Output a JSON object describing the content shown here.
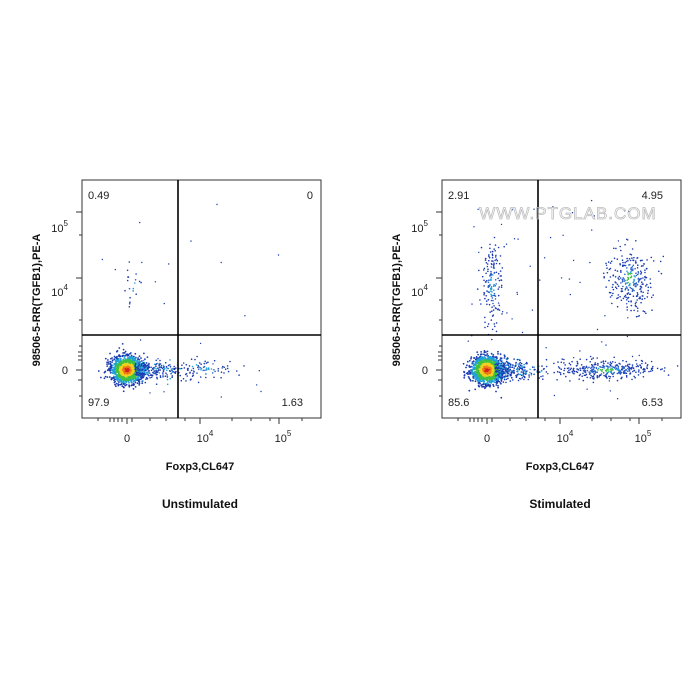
{
  "watermark": "WWW.PTGLAB.COM",
  "chart_data": [
    {
      "type": "scatter",
      "title": "Unstimulated",
      "xlabel": "Foxp3,CL647",
      "ylabel": "98506-5-RR(TGFB1),PE-A",
      "x_scale": "biexponential",
      "y_scale": "biexponential",
      "x_ticks": [
        "0",
        "10^4",
        "10^5"
      ],
      "y_ticks": [
        "0",
        "10^4",
        "10^5"
      ],
      "quadrants": {
        "upper_left": "0.49",
        "upper_right": "0",
        "lower_left": "97.9",
        "lower_right": "1.63"
      },
      "populations": [
        {
          "name": "Foxp3- TGFB1-",
          "x_center": 0,
          "y_center": 0,
          "percent": 97.9
        },
        {
          "name": "Foxp3- TGFB1+",
          "x_center": 300,
          "y_center": 8000,
          "percent": 0.49
        },
        {
          "name": "Foxp3+ TGFB1-",
          "x_center": 6000,
          "y_center": 0,
          "percent": 1.63
        }
      ],
      "grid": false
    },
    {
      "type": "scatter",
      "title": "Stimulated",
      "xlabel": "Foxp3,CL647",
      "ylabel": "98506-5-RR(TGFB1),PE-A",
      "x_scale": "biexponential",
      "y_scale": "biexponential",
      "x_ticks": [
        "0",
        "10^4",
        "10^5"
      ],
      "y_ticks": [
        "0",
        "10^4",
        "10^5"
      ],
      "quadrants": {
        "upper_left": "2.91",
        "upper_right": "4.95",
        "lower_left": "85.6",
        "lower_right": "6.53"
      },
      "populations": [
        {
          "name": "Foxp3- TGFB1-",
          "x_center": 0,
          "y_center": 0,
          "percent": 85.6
        },
        {
          "name": "Foxp3- TGFB1+",
          "x_center": 300,
          "y_center": 8000,
          "percent": 2.91
        },
        {
          "name": "Foxp3+ TGFB1+",
          "x_center": 40000,
          "y_center": 10000,
          "percent": 4.95
        },
        {
          "name": "Foxp3+ TGFB1-",
          "x_center": 20000,
          "y_center": 0,
          "percent": 6.53
        }
      ],
      "grid": false
    }
  ]
}
